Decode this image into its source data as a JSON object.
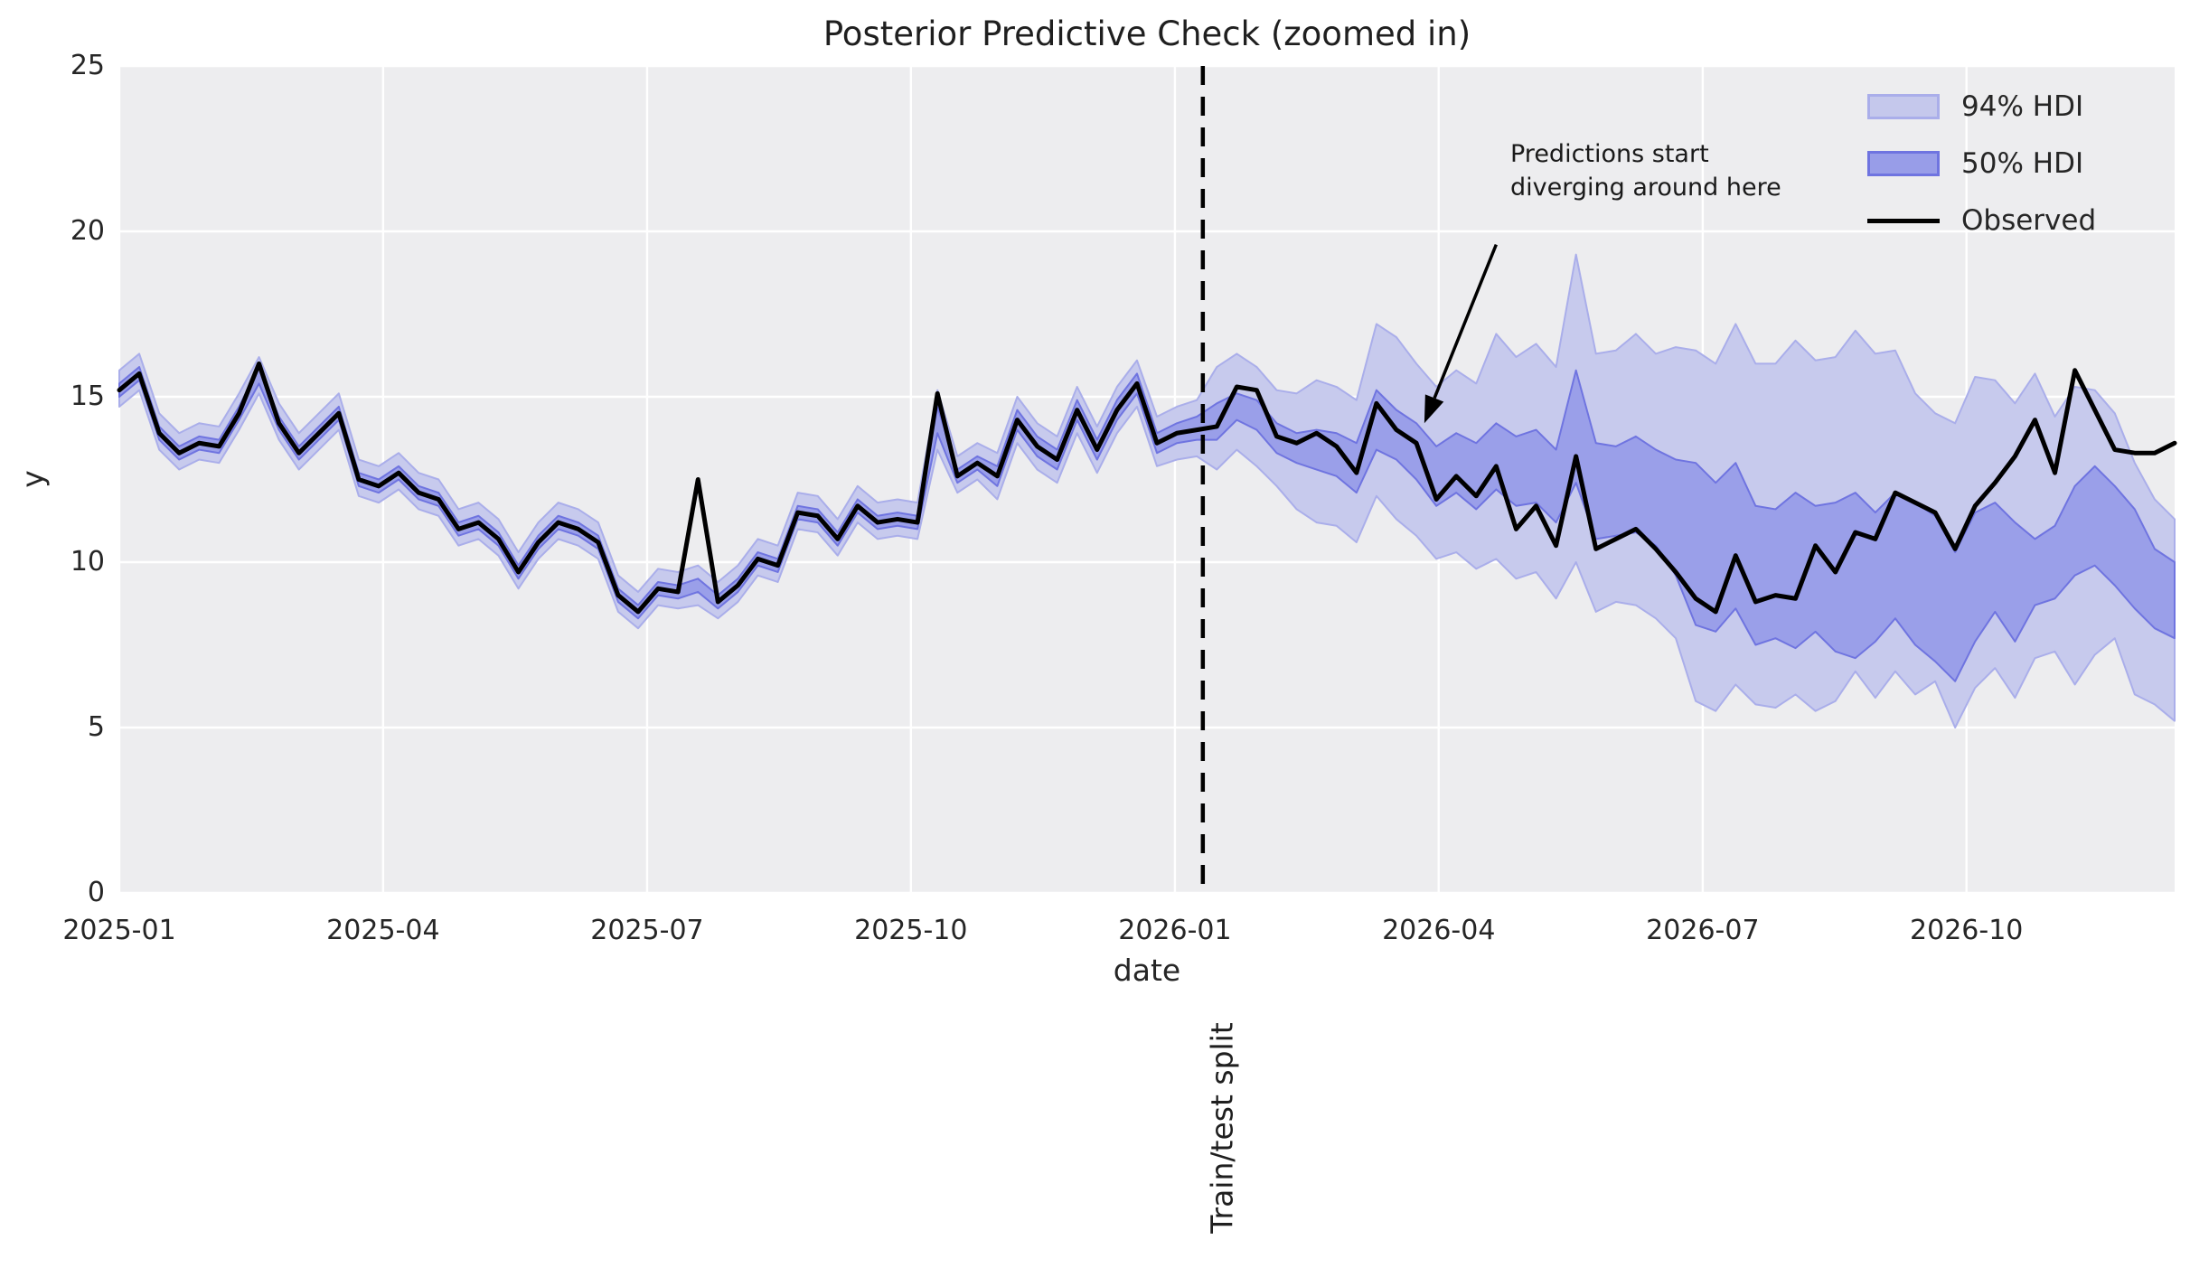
{
  "title": "Posterior Predictive Check (zoomed in)",
  "axes": {
    "xlabel": "date",
    "ylabel": "y",
    "ylim": [
      0,
      25
    ],
    "ytick_labels": [
      "0",
      "5",
      "10",
      "15",
      "20",
      "25"
    ],
    "ytick_values": [
      0,
      5,
      10,
      15,
      20,
      25
    ],
    "xtick_labels": [
      "2025-01",
      "2025-04",
      "2025-07",
      "2025-10",
      "2026-01",
      "2026-04",
      "2026-07",
      "2026-10"
    ],
    "xtick_weeks": [
      0,
      13.22,
      26.45,
      39.67,
      52.9,
      66.12,
      79.35,
      92.57
    ]
  },
  "styles": {
    "axes_bg": "#ededef",
    "grid_color": "#ffffff",
    "hdi94_fill": "#c5c8ec",
    "hdi94_edge": "#aaaeea",
    "hdi50_fill": "#989de8",
    "hdi50_edge": "#6f74e0",
    "observed_color": "#000000",
    "split_line_color": "#000000",
    "text_color": "#262626",
    "annotation_color": "#1a1a1a"
  },
  "legend": {
    "items": [
      {
        "label": "94% HDI",
        "swatch": "hdi94"
      },
      {
        "label": "50% HDI",
        "swatch": "hdi50"
      },
      {
        "label": "Observed",
        "swatch": "line"
      }
    ]
  },
  "split": {
    "label": "Train/test split",
    "week": 54.3
  },
  "annotation": {
    "text": "Predictions start\ndiverging around here",
    "arrow_tail": {
      "week": 69.0,
      "y": 19.6
    },
    "arrow_tip": {
      "week": 65.4,
      "y": 14.2
    }
  },
  "chart_data": {
    "type": "line",
    "title": "Posterior Predictive Check (zoomed in)",
    "xlabel": "date",
    "ylabel": "y",
    "ylim": [
      0,
      25
    ],
    "x_start_date": "2024-12-29",
    "x_freq_days": 7,
    "n_points": 104,
    "legend_entries": [
      "94% HDI",
      "50% HDI",
      "Observed"
    ],
    "grid": true,
    "legend_position": "upper right",
    "observed": [
      15.2,
      15.7,
      13.9,
      13.3,
      13.6,
      13.5,
      14.5,
      16.0,
      14.2,
      13.3,
      13.9,
      14.5,
      12.5,
      12.3,
      12.7,
      12.1,
      11.9,
      11.0,
      11.2,
      10.7,
      9.7,
      10.6,
      11.2,
      11.0,
      10.6,
      9.0,
      8.5,
      9.2,
      9.1,
      12.5,
      8.8,
      9.3,
      10.1,
      9.9,
      11.5,
      11.4,
      10.7,
      11.7,
      11.2,
      11.3,
      11.2,
      15.1,
      12.6,
      13.0,
      12.6,
      14.3,
      13.5,
      13.1,
      14.6,
      13.4,
      14.6,
      15.4,
      13.6,
      13.9,
      14.0,
      14.1,
      15.3,
      15.2,
      13.8,
      13.6,
      13.9,
      13.5,
      12.7,
      14.8,
      14.0,
      13.6,
      11.9,
      12.6,
      12.0,
      12.9,
      11.0,
      11.7,
      10.5,
      13.2,
      10.4,
      10.7,
      11.0,
      10.4,
      9.7,
      8.9,
      8.5,
      10.2,
      8.8,
      9.0,
      8.9,
      10.5,
      9.7,
      10.9,
      10.7,
      12.1,
      11.8,
      11.5,
      10.4,
      11.7,
      12.4,
      13.2,
      14.3,
      12.7,
      15.8,
      14.6,
      13.4,
      13.3,
      13.3,
      13.6
    ],
    "hdi94_upper": [
      15.8,
      16.3,
      14.5,
      13.9,
      14.2,
      14.1,
      15.1,
      16.2,
      14.8,
      13.9,
      14.5,
      15.1,
      13.1,
      12.9,
      13.3,
      12.7,
      12.5,
      11.6,
      11.8,
      11.3,
      10.3,
      11.2,
      11.8,
      11.6,
      11.2,
      9.6,
      9.1,
      9.8,
      9.7,
      9.9,
      9.4,
      9.9,
      10.7,
      10.5,
      12.1,
      12.0,
      11.3,
      12.3,
      11.8,
      11.9,
      11.8,
      15.2,
      13.2,
      13.6,
      13.3,
      15.0,
      14.2,
      13.8,
      15.3,
      14.1,
      15.3,
      16.1,
      14.4,
      14.7,
      14.9,
      15.9,
      16.3,
      15.9,
      15.2,
      15.1,
      15.5,
      15.3,
      14.9,
      17.2,
      16.8,
      16.0,
      15.3,
      15.8,
      15.4,
      16.9,
      16.2,
      16.6,
      15.9,
      19.3,
      16.3,
      16.4,
      16.9,
      16.3,
      16.5,
      16.4,
      16.0,
      17.2,
      16.0,
      16.0,
      16.7,
      16.1,
      16.2,
      17.0,
      16.3,
      16.4,
      15.1,
      14.5,
      14.2,
      15.6,
      15.5,
      14.8,
      15.7,
      14.4,
      15.3,
      15.2,
      14.5,
      13.0,
      11.9,
      11.3
    ],
    "hdi50_upper": [
      15.4,
      15.9,
      14.1,
      13.5,
      13.8,
      13.7,
      14.7,
      15.9,
      14.4,
      13.5,
      14.1,
      14.7,
      12.7,
      12.5,
      12.9,
      12.3,
      12.1,
      11.2,
      11.4,
      10.9,
      9.9,
      10.8,
      11.4,
      11.2,
      10.8,
      9.2,
      8.7,
      9.4,
      9.3,
      9.5,
      9.0,
      9.5,
      10.3,
      10.1,
      11.7,
      11.6,
      10.9,
      11.9,
      11.4,
      11.5,
      11.4,
      14.7,
      12.8,
      13.2,
      12.9,
      14.6,
      13.8,
      13.4,
      14.9,
      13.7,
      14.9,
      15.7,
      13.9,
      14.2,
      14.4,
      14.8,
      15.1,
      14.9,
      14.2,
      13.9,
      14.0,
      13.9,
      13.6,
      15.2,
      14.6,
      14.2,
      13.5,
      13.9,
      13.6,
      14.2,
      13.8,
      14.0,
      13.4,
      15.8,
      13.6,
      13.5,
      13.8,
      13.4,
      13.1,
      13.0,
      12.4,
      13.0,
      11.7,
      11.6,
      12.1,
      11.7,
      11.8,
      12.1,
      11.5,
      12.1,
      11.8,
      11.4,
      10.3,
      11.5,
      11.8,
      11.2,
      10.7,
      11.1,
      12.3,
      12.9,
      12.3,
      11.6,
      10.4,
      10.0
    ],
    "hdi50_lower": [
      15.0,
      15.5,
      13.7,
      13.1,
      13.4,
      13.3,
      14.3,
      15.4,
      14.0,
      13.1,
      13.7,
      14.3,
      12.3,
      12.1,
      12.5,
      11.9,
      11.7,
      10.8,
      11.0,
      10.5,
      9.5,
      10.4,
      11.0,
      10.8,
      10.4,
      8.8,
      8.3,
      9.0,
      8.9,
      9.1,
      8.6,
      9.1,
      9.9,
      9.7,
      11.3,
      11.2,
      10.5,
      11.5,
      11.0,
      11.1,
      11.0,
      13.9,
      12.4,
      12.8,
      12.3,
      14.0,
      13.2,
      12.8,
      14.3,
      13.1,
      14.3,
      15.1,
      13.3,
      13.6,
      13.7,
      13.7,
      14.3,
      14.0,
      13.3,
      13.0,
      12.8,
      12.6,
      12.1,
      13.4,
      13.1,
      12.5,
      11.7,
      12.1,
      11.6,
      12.2,
      11.7,
      11.8,
      11.2,
      12.4,
      10.7,
      10.8,
      10.9,
      10.5,
      9.6,
      8.1,
      7.9,
      8.6,
      7.5,
      7.7,
      7.4,
      7.9,
      7.3,
      7.1,
      7.6,
      8.3,
      7.5,
      7.0,
      6.4,
      7.6,
      8.5,
      7.6,
      8.7,
      8.9,
      9.6,
      9.9,
      9.3,
      8.6,
      8.0,
      7.7
    ],
    "hdi94_lower": [
      14.7,
      15.2,
      13.4,
      12.8,
      13.1,
      13.0,
      14.0,
      15.1,
      13.7,
      12.8,
      13.4,
      14.0,
      12.0,
      11.8,
      12.2,
      11.6,
      11.4,
      10.5,
      10.7,
      10.2,
      9.2,
      10.1,
      10.7,
      10.5,
      10.1,
      8.5,
      8.0,
      8.7,
      8.6,
      8.7,
      8.3,
      8.8,
      9.6,
      9.4,
      11.0,
      10.9,
      10.2,
      11.2,
      10.7,
      10.8,
      10.7,
      13.4,
      12.1,
      12.5,
      11.9,
      13.6,
      12.8,
      12.4,
      13.9,
      12.7,
      13.9,
      14.7,
      12.9,
      13.1,
      13.2,
      12.8,
      13.4,
      12.9,
      12.3,
      11.6,
      11.2,
      11.1,
      10.6,
      12.0,
      11.3,
      10.8,
      10.1,
      10.3,
      9.8,
      10.1,
      9.5,
      9.7,
      8.9,
      10.0,
      8.5,
      8.8,
      8.7,
      8.3,
      7.7,
      5.8,
      5.5,
      6.3,
      5.7,
      5.6,
      6.0,
      5.5,
      5.8,
      6.7,
      5.9,
      6.7,
      6.0,
      6.4,
      5.0,
      6.2,
      6.8,
      5.9,
      7.1,
      7.3,
      6.3,
      7.2,
      7.7,
      6.0,
      5.7,
      5.2
    ]
  }
}
